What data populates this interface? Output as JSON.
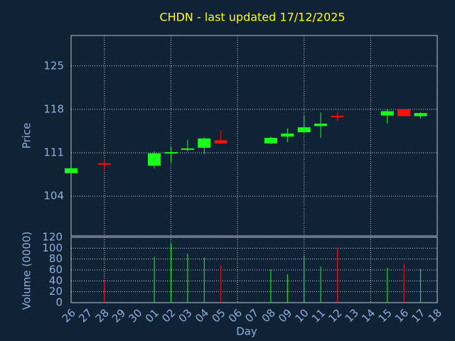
{
  "chart_data": {
    "type": "candlestick",
    "title": "CHDN - last updated 17/12/2025",
    "ylabel": "Price",
    "volume_label": "Volume (0000)",
    "xlabel": "Day",
    "categories": [
      "26",
      "27",
      "28",
      "29",
      "30",
      "01",
      "02",
      "03",
      "04",
      "05",
      "06",
      "07",
      "08",
      "09",
      "10",
      "11",
      "12",
      "13",
      "14",
      "15",
      "16",
      "17",
      "18"
    ],
    "open": [
      107.7,
      null,
      109.3,
      null,
      null,
      108.9,
      111.0,
      111.6,
      111.8,
      113.0,
      null,
      null,
      112.5,
      113.6,
      114.3,
      115.3,
      116.95,
      null,
      null,
      117.0,
      118.0,
      116.9,
      null
    ],
    "high": [
      108.5,
      null,
      110.0,
      null,
      null,
      111.2,
      111.9,
      113.1,
      113.5,
      114.6,
      null,
      null,
      113.6,
      114.9,
      117.0,
      117.5,
      117.5,
      null,
      null,
      118.0,
      118.0,
      117.5,
      null
    ],
    "low": [
      107.7,
      null,
      108.1,
      null,
      null,
      108.5,
      109.4,
      111.2,
      110.8,
      112.4,
      null,
      null,
      112.4,
      112.7,
      114.2,
      113.4,
      116.2,
      null,
      null,
      115.7,
      116.9,
      116.5,
      null
    ],
    "close": [
      108.5,
      null,
      109.2,
      null,
      null,
      110.9,
      111.1,
      111.7,
      113.3,
      112.5,
      null,
      null,
      113.4,
      114.1,
      115.1,
      115.7,
      116.9,
      null,
      null,
      117.7,
      116.9,
      117.4,
      null
    ],
    "volume": [
      0,
      null,
      40,
      null,
      null,
      84,
      109,
      90,
      83,
      69,
      null,
      null,
      61,
      52,
      86,
      66,
      99,
      null,
      null,
      64,
      71,
      62,
      null
    ],
    "up_color": "#19ff19",
    "down_color": "#ff1010",
    "ylim": [
      97.6,
      129.9
    ],
    "yticks": [
      104,
      111,
      118,
      125
    ],
    "volume_ylim": [
      0,
      120
    ],
    "volume_yticks": [
      0,
      20,
      40,
      60,
      80,
      100,
      120
    ],
    "grid": true
  }
}
